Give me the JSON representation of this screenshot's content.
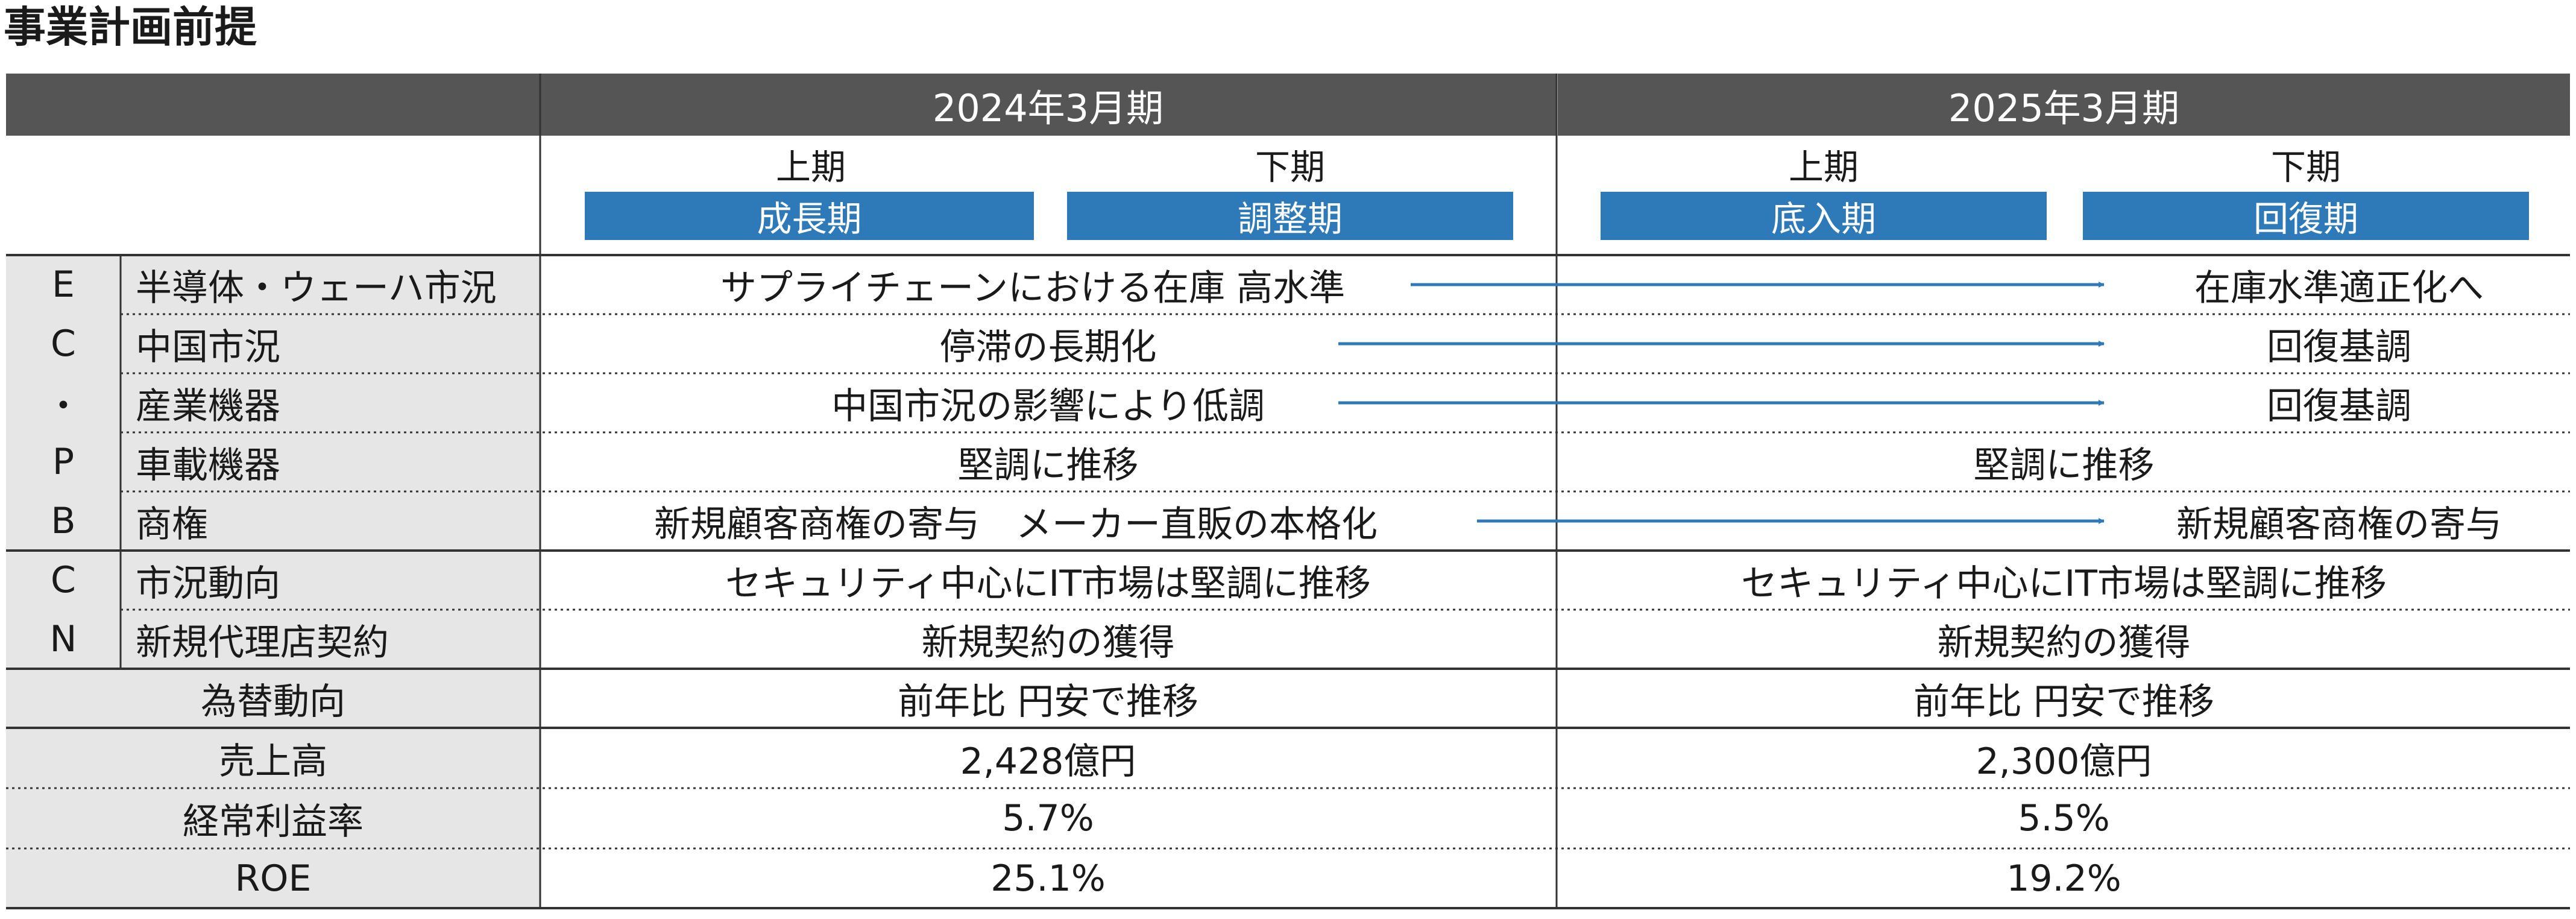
{
  "title": "事業計画前提",
  "periods": [
    {
      "label": "2024年3月期",
      "halves": [
        {
          "label": "上期",
          "phase": "成長期"
        },
        {
          "label": "下期",
          "phase": "調整期"
        }
      ]
    },
    {
      "label": "2025年3月期",
      "halves": [
        {
          "label": "上期",
          "phase": "底入期"
        },
        {
          "label": "下期",
          "phase": "回復期"
        }
      ]
    }
  ],
  "groups": {
    "ecpb": [
      "E",
      "C",
      "・",
      "P",
      "B"
    ],
    "cn": [
      "C",
      "N"
    ]
  },
  "rows": [
    {
      "label": "半導体・ウェーハ市況",
      "fy2024": "サプライチェーンにおける在庫 高水準",
      "fy2025": "在庫水準適正化へ",
      "arrow": true
    },
    {
      "label": "中国市況",
      "fy2024": "停滞の長期化",
      "fy2025": "回復基調",
      "arrow": true
    },
    {
      "label": "産業機器",
      "fy2024": "中国市況の影響により低調",
      "fy2025": "回復基調",
      "arrow": true
    },
    {
      "label": "車載機器",
      "fy2024": "堅調に推移",
      "fy2025": "堅調に推移",
      "arrow": false
    },
    {
      "label": "商権",
      "fy2024": "新規顧客商権の寄与　メーカー直販の本格化",
      "fy2025": "新規顧客商権の寄与",
      "arrow": true
    },
    {
      "label": "市況動向",
      "fy2024": "セキュリティ中心にIT市場は堅調に推移",
      "fy2025": "セキュリティ中心にIT市場は堅調に推移",
      "arrow": false
    },
    {
      "label": "新規代理店契約",
      "fy2024": "新規契約の獲得",
      "fy2025": "新規契約の獲得",
      "arrow": false
    },
    {
      "label": "為替動向",
      "fy2024": "前年比  円安で推移",
      "fy2025": "前年比  円安で推移",
      "arrow": false
    },
    {
      "label": "売上高",
      "fy2024": "2,428億円",
      "fy2025": "2,300億円",
      "arrow": false
    },
    {
      "label": "経常利益率",
      "fy2024": "5.7%",
      "fy2025": "5.5%",
      "arrow": false
    },
    {
      "label": "ROE",
      "fy2024": "25.1%",
      "fy2025": "19.2%",
      "arrow": false
    }
  ],
  "colors": {
    "header_bg": "#555555",
    "phase_bg": "#2e7ab8",
    "arrow": "#2e7ab8",
    "label_bg": "#e6e6e6"
  }
}
